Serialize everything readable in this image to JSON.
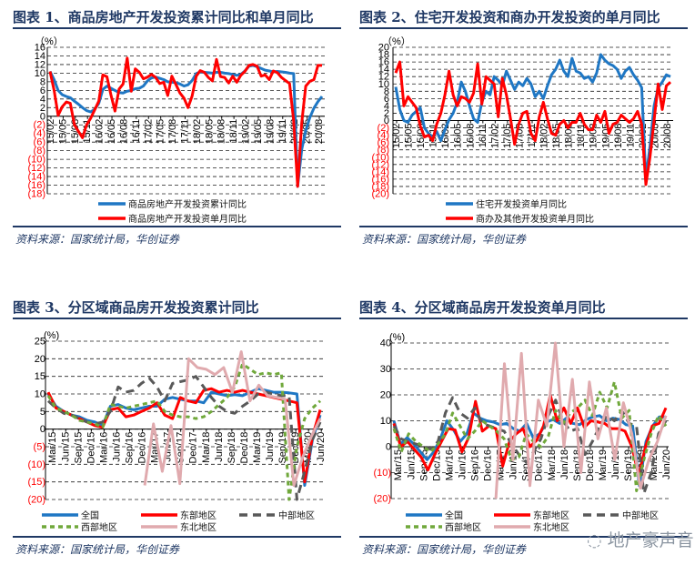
{
  "source_text": "资料来源：国家统计局，华创证券",
  "watermark": "地产豪声音",
  "titles": [
    "图表 1、商品房地产开发投资累计同比和单月同比",
    "图表 2、住宅开发投资和商办开发投资的单月同比",
    "图表 3、分区域商品房开发投资累计同比",
    "图表 4、分区域商品房开发投资单月同比"
  ],
  "colors": {
    "blue": "#1f77c4",
    "red": "#ff0000",
    "darkgray": "#595959",
    "green": "#70a83b",
    "pink": "#e0aaae",
    "title": "#1f3864",
    "neg": "#ff0000"
  },
  "chart_data": [
    {
      "type": "line",
      "title": "图表 1、商品房地产开发投资累计同比和单月同比",
      "ylabel": "（%）",
      "ylim": [
        -18,
        16
      ],
      "yticks": [
        "16",
        "14",
        "12",
        "10",
        "8",
        "6",
        "4",
        "2",
        "0",
        "(2)",
        "(4)",
        "(6)",
        "(8)",
        "(10)",
        "(12)",
        "(14)",
        "(16)",
        "(18)"
      ],
      "categories": [
        "15/02",
        "15/05",
        "15/08",
        "15/11",
        "16/02",
        "16/05",
        "16/08",
        "16/11",
        "17/02",
        "17/05",
        "17/08",
        "17/11",
        "18/02",
        "18/05",
        "18/08",
        "18/11",
        "19/02",
        "19/05",
        "19/08",
        "19/11",
        "20/02",
        "20/05",
        "20/08"
      ],
      "grid": true,
      "legend_position": "bottom",
      "series": [
        {
          "name": "商品房地产开发投资累计同比",
          "color": "blue",
          "values": [
            10.4,
            8.5,
            6.0,
            5.0,
            4.6,
            4.3,
            3.5,
            2.8,
            2.0,
            1.3,
            1.0,
            1.6,
            3.0,
            6.2,
            7.0,
            6.5,
            6.0,
            5.5,
            5.4,
            5.8,
            6.0,
            6.4,
            6.5,
            7.0,
            8.2,
            8.9,
            9.1,
            8.8,
            8.5,
            8.0,
            7.9,
            7.8,
            7.5,
            7.0,
            7.3,
            8.3,
            9.9,
            10.3,
            10.2,
            10.1,
            10.0,
            10.2,
            10.2,
            10.0,
            9.9,
            9.7,
            9.5,
            9.7,
            10.5,
            11.6,
            11.8,
            11.5,
            11.1,
            10.7,
            10.5,
            10.3,
            10.4,
            10.3,
            10.2,
            10.0,
            9.9,
            -16.3,
            -7.7,
            -3.3,
            -0.3,
            1.9,
            3.4,
            4.6
          ]
        },
        {
          "name": "商品房地产开发投资单月同比",
          "color": "red",
          "values": [
            10.4,
            6.0,
            0.2,
            2.2,
            3.3,
            3.0,
            -2.0,
            -3.5,
            -5.0,
            -2.0,
            -0.5,
            1.5,
            3.5,
            9.6,
            9.2,
            5.0,
            1.2,
            6.3,
            7.5,
            13.5,
            5.8,
            11.0,
            10.2,
            8.7,
            9.1,
            9.7,
            9.0,
            7.6,
            7.9,
            4.8,
            9.3,
            7.4,
            5.4,
            4.2,
            2.0,
            4.7,
            9.3,
            10.6,
            10.2,
            9.0,
            8.2,
            13.2,
            9.2,
            9.0,
            7.7,
            9.3,
            7.9,
            9.5,
            10.4,
            11.8,
            12.0,
            11.6,
            9.3,
            9.6,
            8.5,
            10.5,
            10.1,
            9.0,
            8.3,
            7.6,
            -1.0,
            -16.3,
            -1.5,
            7.0,
            8.1,
            8.5,
            11.8,
            11.8
          ]
        }
      ]
    },
    {
      "type": "line",
      "title": "图表 2、住宅开发投资和商办开发投资的单月同比",
      "ylabel": "（%）",
      "ylim": [
        -20,
        20
      ],
      "yticks": [
        "20",
        "18",
        "16",
        "14",
        "12",
        "10",
        "8",
        "6",
        "4",
        "2",
        "0",
        "(2)",
        "(4)",
        "(6)",
        "(8)",
        "(10)",
        "(12)",
        "(14)",
        "(16)",
        "(18)",
        "(20)"
      ],
      "categories": [
        "15/02",
        "15/05",
        "15/08",
        "15/11",
        "16/02",
        "16/05",
        "16/08",
        "16/11",
        "17/02",
        "17/05",
        "17/08",
        "17/11",
        "18/02",
        "18/05",
        "18/08",
        "18/11",
        "19/02",
        "19/05",
        "19/08",
        "19/11",
        "20/02",
        "20/05",
        "20/08"
      ],
      "grid": true,
      "legend_position": "bottom",
      "series": [
        {
          "name": "住宅开发投资单月同比",
          "color": "blue",
          "values": [
            9.2,
            3.0,
            0.0,
            -0.5,
            1.5,
            2.5,
            3.5,
            -2.0,
            -3.5,
            -4.5,
            -3.0,
            -5.5,
            -2.5,
            0.2,
            2.0,
            5.0,
            10.5,
            8.0,
            4.0,
            0.5,
            -0.5,
            5.0,
            8.0,
            7.0,
            12.0,
            11.0,
            9.5,
            13.5,
            11.0,
            8.5,
            10.5,
            9.5,
            11.5,
            10.0,
            6.5,
            8.0,
            6.0,
            9.5,
            12.5,
            14.0,
            16.5,
            13.5,
            12.0,
            17.0,
            13.5,
            13.0,
            11.5,
            12.0,
            10.5,
            13.0,
            18.0,
            16.5,
            15.5,
            15.0,
            14.0,
            11.5,
            13.5,
            14.5,
            12.5,
            11.0,
            9.0,
            -16.0,
            -7.0,
            4.0,
            9.0,
            10.5,
            12.5,
            12.0
          ]
        },
        {
          "name": "商办及其他开发投资单月同比",
          "color": "red",
          "values": [
            13.0,
            16.0,
            4.0,
            6.5,
            5.0,
            3.5,
            -1.5,
            -4.5,
            -4.0,
            -5.5,
            -1.0,
            2.0,
            7.0,
            13.5,
            7.0,
            4.0,
            6.5,
            6.0,
            5.0,
            7.5,
            15.5,
            4.5,
            12.0,
            11.0,
            10.0,
            1.0,
            11.5,
            7.0,
            0.5,
            -6.5,
            -1.0,
            2.0,
            2.5,
            -3.5,
            -5.5,
            1.0,
            5.0,
            0.5,
            -3.5,
            -4.0,
            -1.0,
            0.0,
            -2.0,
            -0.5,
            -0.5,
            2.0,
            -1.0,
            -2.5,
            -2.5,
            1.5,
            -0.5,
            2.5,
            -3.5,
            -1.0,
            -0.5,
            1.5,
            0.5,
            -0.5,
            0.5,
            2.5,
            -1.0,
            -17.5,
            -10.0,
            0.0,
            10.0,
            3.0,
            9.5,
            10.5
          ]
        }
      ]
    },
    {
      "type": "line",
      "title": "图表 3、分区域商品房开发投资累计同比",
      "ylabel": "(%)",
      "ylim": [
        -20,
        25
      ],
      "yticks": [
        "25",
        "20",
        "15",
        "10",
        "5",
        "0",
        "(5)",
        "(10)",
        "(15)",
        "(20)"
      ],
      "categories": [
        "Mar/15",
        "Jun/15",
        "Sep/15",
        "Dec/15",
        "Mar/16",
        "Jun/16",
        "Sep/16",
        "Dec/16",
        "Mar/17",
        "Jun/17",
        "Sep/17",
        "Dec/17",
        "Mar/18",
        "Jun/18",
        "Sep/18",
        "Dec/18",
        "Mar/19",
        "Jun/19",
        "Sep/19",
        "Dec/19",
        "Mar/20",
        "Jun/20"
      ],
      "grid": true,
      "legend_position": "bottom",
      "series": [
        {
          "name": "全国",
          "color": "blue",
          "dash": "solid",
          "values": [
            10.0,
            6.5,
            5.0,
            4.0,
            3.5,
            2.5,
            2.0,
            1.0,
            6.5,
            7.0,
            6.0,
            5.5,
            6.0,
            6.5,
            6.5,
            8.5,
            9.0,
            8.5,
            8.0,
            8.0,
            7.5,
            10.5,
            10.0,
            9.5,
            9.8,
            9.5,
            10.5,
            11.5,
            11.0,
            10.5,
            10.5,
            10.3,
            10.0,
            -16.0,
            -3.0,
            4.0
          ]
        },
        {
          "name": "东部地区",
          "color": "red",
          "dash": "solid",
          "values": [
            10.5,
            6.0,
            5.0,
            4.0,
            3.0,
            2.0,
            1.0,
            0.5,
            5.5,
            6.0,
            3.5,
            4.0,
            5.0,
            6.0,
            7.5,
            4.0,
            3.0,
            9.0,
            8.0,
            7.5,
            11.0,
            11.5,
            10.5,
            11.0,
            10.5,
            11.0,
            10.5,
            10.0,
            9.5,
            9.0,
            8.5,
            8.0,
            7.5,
            -15.0,
            -2.0,
            5.5
          ]
        },
        {
          "name": "中部地区",
          "color": "darkgray",
          "dash": "long",
          "values": [
            8.0,
            6.0,
            4.5,
            4.0,
            3.0,
            2.0,
            1.5,
            2.0,
            5.0,
            12.0,
            10.5,
            11.0,
            13.0,
            14.5,
            12.0,
            8.0,
            13.0,
            13.5,
            14.0,
            15.0,
            12.0,
            9.0,
            6.5,
            5.0,
            4.5,
            6.5,
            8.0,
            10.0,
            10.5,
            10.0,
            9.5,
            9.5,
            -20.0,
            -12.0,
            -3.0,
            2.0
          ]
        },
        {
          "name": "西部地区",
          "color": "green",
          "dash": "short",
          "values": [
            9.5,
            6.0,
            5.0,
            4.0,
            2.5,
            2.0,
            1.5,
            0.5,
            7.0,
            6.5,
            6.0,
            6.5,
            7.0,
            7.5,
            8.0,
            5.0,
            4.0,
            3.5,
            3.5,
            3.0,
            3.5,
            5.0,
            7.0,
            9.0,
            12.0,
            18.5,
            17.0,
            15.5,
            16.0,
            15.5,
            16.0,
            -20.0,
            -5.0,
            3.0,
            6.0,
            8.0
          ]
        },
        {
          "name": "东北地区",
          "color": "pink",
          "dash": "solid",
          "values": [
            null,
            null,
            null,
            null,
            null,
            null,
            null,
            null,
            null,
            null,
            null,
            -16.0,
            1.5,
            -12.0,
            1.0,
            -15.5,
            20.0,
            17.5,
            17.0,
            15.5,
            17.5,
            10.5,
            22.0,
            8.0,
            12.5,
            9.5,
            9.0,
            8.5,
            -16.0,
            -8.0,
            -2.0,
            3.0
          ]
        }
      ]
    },
    {
      "type": "line",
      "title": "图表 4、分区域商品房开发投资单月同比",
      "ylabel": "(%)",
      "ylim": [
        -20,
        40
      ],
      "yticks": [
        "40",
        "30",
        "20",
        "10",
        "0",
        "(10)",
        "(20)"
      ],
      "categories": [
        "Mar/15",
        "Jun/15",
        "Sep/15",
        "Dec/15",
        "Mar/16",
        "Jun/16",
        "Sep/16",
        "Dec/16",
        "Mar/17",
        "Jun/17",
        "Sep/17",
        "Dec/17",
        "Mar/18",
        "Jun/18",
        "Sep/18",
        "Dec/18",
        "Mar/19",
        "Jun/19",
        "Sep/19",
        "Dec/19",
        "Mar/20",
        "Jun/20"
      ],
      "grid": true,
      "legend_position": "bottom",
      "series": [
        {
          "name": "全国",
          "color": "blue",
          "dash": "solid",
          "values": [
            10.0,
            1.0,
            3.5,
            1.0,
            -2.0,
            -5.0,
            -2.0,
            3.0,
            10.0,
            6.5,
            2.0,
            5.0,
            13.0,
            11.0,
            10.0,
            9.5,
            8.5,
            9.0,
            7.0,
            6.0,
            9.0,
            3.5,
            5.0,
            9.5,
            10.5,
            9.0,
            11.0,
            9.0,
            8.5,
            10.5,
            11.5,
            12.0,
            10.0,
            11.0,
            10.5,
            8.5,
            8.0,
            -15.0,
            2.0,
            8.0,
            11.5,
            11.5
          ]
        },
        {
          "name": "东部地区",
          "color": "red",
          "dash": "solid",
          "values": [
            9.0,
            0.0,
            2.0,
            -1.0,
            -4.0,
            -9.0,
            -3.0,
            2.0,
            7.0,
            6.5,
            -2.0,
            3.5,
            17.5,
            6.0,
            8.0,
            7.0,
            -7.5,
            2.0,
            5.0,
            7.0,
            0.0,
            2.5,
            8.0,
            20.0,
            10.0,
            15.0,
            9.0,
            15.0,
            7.5,
            10.0,
            9.5,
            9.0,
            7.0,
            7.0,
            6.0,
            0.0,
            -11.0,
            0.0,
            8.0,
            9.0,
            15.0
          ]
        },
        {
          "name": "中部地区",
          "color": "darkgray",
          "dash": "long",
          "values": [
            8.0,
            3.0,
            2.0,
            1.0,
            0.5,
            -1.0,
            2.0,
            13.0,
            19.0,
            13.0,
            11.0,
            15.0,
            9.0,
            8.0,
            7.0,
            6.0,
            1.0,
            -3.0,
            -6.0,
            -2.0,
            3.0,
            12.0,
            18.0,
            10.0,
            6.0,
            7.0,
            -3.0,
            2.0,
            8.0,
            12.0,
            10.0,
            14.0,
            9.0,
            8.0,
            -18.0,
            -10.0,
            5.0,
            10.0
          ]
        },
        {
          "name": "西部地区",
          "color": "green",
          "dash": "short",
          "values": [
            7.0,
            -2.0,
            5.0,
            2.0,
            0.0,
            -2.0,
            1.0,
            5.0,
            13.0,
            8.0,
            3.0,
            6.0,
            10.0,
            8.0,
            6.0,
            3.0,
            -5.0,
            -4.0,
            5.0,
            2.0,
            0.0,
            4.0,
            14.0,
            9.0,
            13.0,
            15.0,
            18.0,
            12.0,
            21.0,
            15.0,
            25.0,
            11.0,
            14.0,
            -17.0,
            -5.0,
            5.0,
            12.0,
            8.0
          ]
        },
        {
          "name": "东北地区",
          "color": "pink",
          "dash": "solid",
          "values": [
            null,
            null,
            null,
            null,
            null,
            null,
            null,
            null,
            null,
            null,
            null,
            null,
            -20.0,
            32.0,
            -5.0,
            36.0,
            -15.0,
            18.0,
            8.0,
            40.0,
            0.0,
            26.0,
            -10.0,
            25.0,
            3.0,
            15.0,
            -5.0,
            17.0,
            5.0,
            -16.0,
            -5.0,
            2.0,
            12.0
          ]
        }
      ]
    }
  ]
}
